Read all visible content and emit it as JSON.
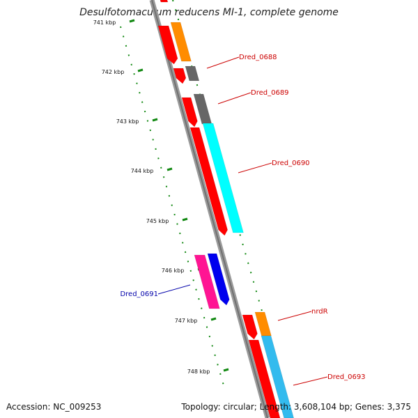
{
  "title": "Desulfotomaculum reducens MI-1, complete genome",
  "footer": {
    "accession": "Accession: NC_009253",
    "summary": "Topology: circular; Length: 3,608,104 bp; Genes: 3,375"
  },
  "colors": {
    "red": "#ff0000",
    "orange": "#ff8c00",
    "gray": "#666666",
    "cyan": "#00ffff",
    "sky": "#33bbee",
    "pink": "#ff1493",
    "blue": "#0000ee",
    "tick_green": "#118811",
    "label_red": "#cc0000",
    "label_blue": "#0000aa"
  },
  "ticks": [
    {
      "label": "741 kbp"
    },
    {
      "label": "742 kbp"
    },
    {
      "label": "743 kbp"
    },
    {
      "label": "744 kbp"
    },
    {
      "label": "745 kbp"
    },
    {
      "label": "746 kbp"
    },
    {
      "label": "747 kbp"
    },
    {
      "label": "748 kbp"
    }
  ],
  "gene_labels": [
    {
      "text": "Dred_0688"
    },
    {
      "text": "Dred_0689"
    },
    {
      "text": "Dred_0690"
    },
    {
      "text": "Dred_0691"
    },
    {
      "text": "nrdR"
    },
    {
      "text": "Dred_0693"
    }
  ]
}
